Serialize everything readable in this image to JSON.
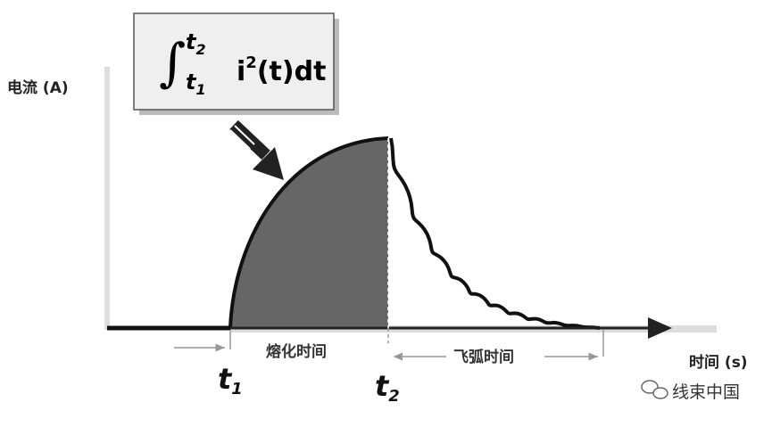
{
  "formula": {
    "integral": "∫",
    "upper": {
      "base": "t",
      "sub": "2"
    },
    "lower": {
      "base": "t",
      "sub": "1"
    },
    "integrand": {
      "base": "i",
      "sup": "2",
      "rest": "(t)dt"
    }
  },
  "y_axis_label": "电流 (A)",
  "x_axis_label": "时间 (s)",
  "t1": {
    "base": "t",
    "sub": "1"
  },
  "t2": {
    "base": "t",
    "sub": "2"
  },
  "melting_time": "熔化时间",
  "arcing_time": "飞弧时间",
  "watermark": "线束中国"
}
